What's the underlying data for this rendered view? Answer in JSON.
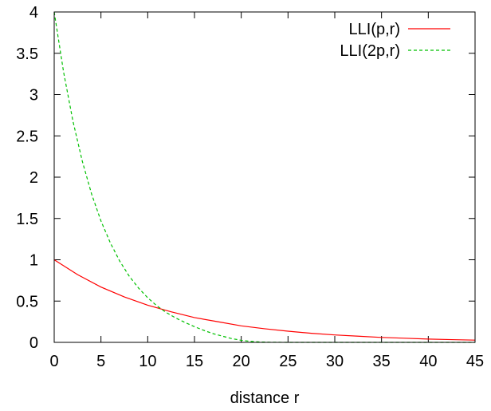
{
  "chart_data": {
    "type": "line",
    "title": "",
    "xlabel": "distance r",
    "ylabel": "",
    "xlim": [
      0,
      45
    ],
    "ylim": [
      0,
      4
    ],
    "xticks": [
      "0",
      "5",
      "10",
      "15",
      "20",
      "25",
      "30",
      "35",
      "40",
      "45"
    ],
    "yticks": [
      "0",
      "0.5",
      "1",
      "1.5",
      "2",
      "2.5",
      "3",
      "3.5",
      "4"
    ],
    "grid": false,
    "legend_position": "top-right",
    "series": [
      {
        "name": "LLI(p,r)",
        "color": "#ff0000",
        "dash": "solid",
        "x": [
          0,
          2.5,
          5,
          7.5,
          10,
          12.5,
          15,
          17.5,
          20,
          22.5,
          25,
          27.5,
          30,
          32.5,
          35,
          37.5,
          40,
          42.5,
          45
        ],
        "y": [
          1.0,
          0.82,
          0.67,
          0.55,
          0.45,
          0.37,
          0.3,
          0.25,
          0.2,
          0.165,
          0.135,
          0.11,
          0.09,
          0.075,
          0.06,
          0.05,
          0.04,
          0.033,
          0.027
        ]
      },
      {
        "name": "LLI(2p,r)",
        "color": "#00c000",
        "dash": "dashed",
        "x": [
          0,
          1,
          2,
          3,
          4,
          5,
          6,
          7,
          8,
          9,
          10,
          11,
          12,
          13,
          14,
          15,
          16,
          17,
          18,
          19,
          20,
          21,
          22,
          23,
          24,
          25,
          27.5,
          30,
          32.5,
          35,
          37.5,
          40,
          42.5,
          45
        ],
        "y": [
          4.0,
          3.275,
          2.68,
          2.195,
          1.795,
          1.47,
          1.205,
          0.985,
          0.805,
          0.66,
          0.54,
          0.44,
          0.36,
          0.295,
          0.24,
          0.19,
          0.145,
          0.105,
          0.075,
          0.045,
          0.025,
          0.012,
          0.005,
          0.002,
          0.001,
          0.0,
          0.0,
          0.0,
          0.0,
          0.0,
          0.0,
          0.0,
          0.0,
          0.0
        ]
      }
    ]
  }
}
